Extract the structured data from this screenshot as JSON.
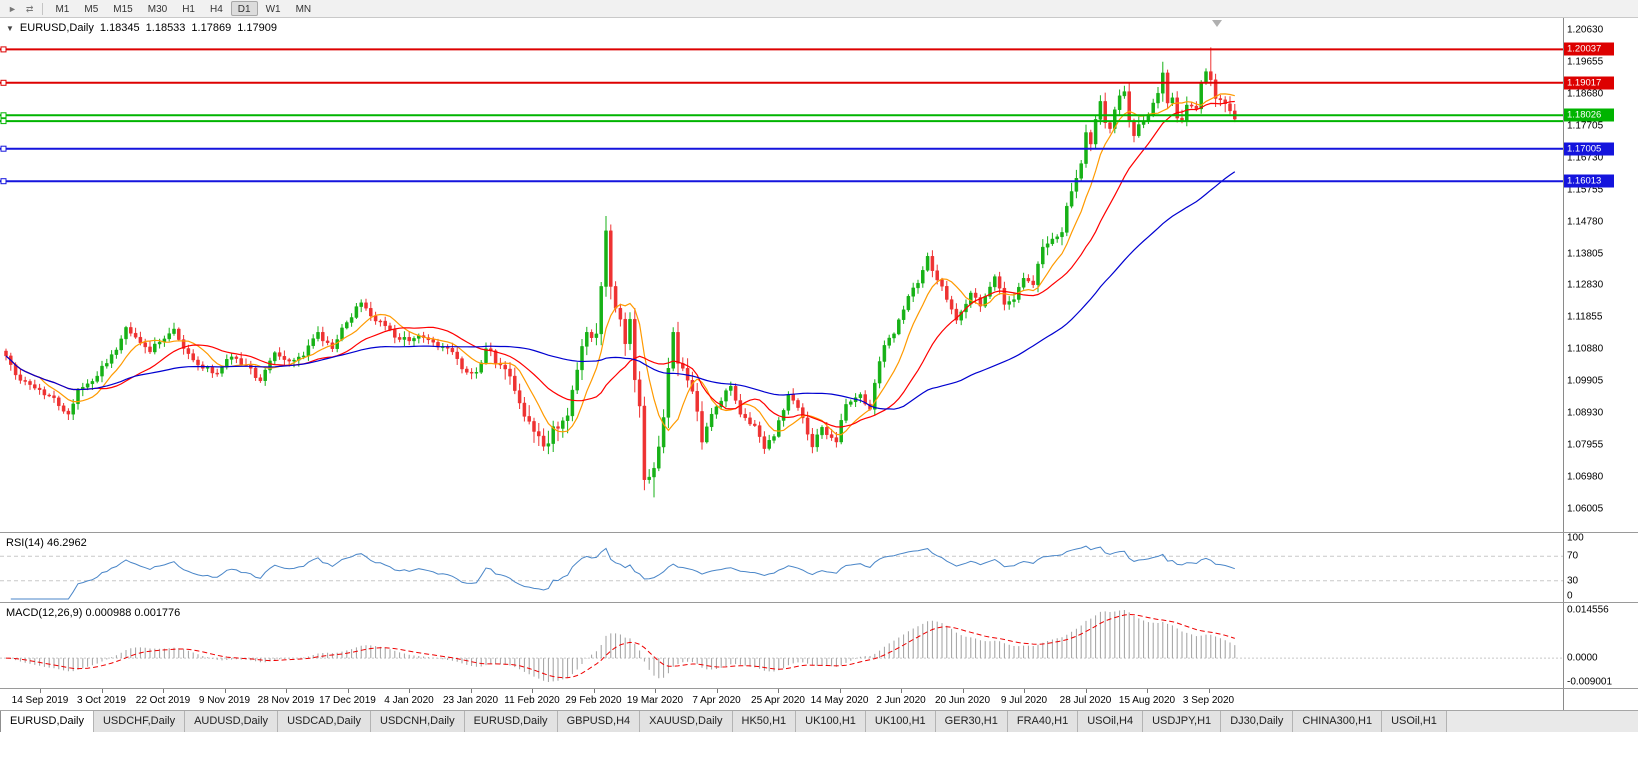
{
  "toolbar": {
    "icons": [
      {
        "name": "auto-scroll-icon",
        "glyph": "►"
      },
      {
        "name": "chart-shift-icon",
        "glyph": "⇄"
      }
    ],
    "timeframes": [
      "M1",
      "M5",
      "M15",
      "M30",
      "H1",
      "H4",
      "D1",
      "W1",
      "MN"
    ],
    "active_timeframe": "D1"
  },
  "window": {
    "bottom_tabs": [
      "EURUSD,Daily",
      "USDCHF,Daily",
      "AUDUSD,Daily",
      "USDCAD,Daily",
      "USDCNH,Daily",
      "EURUSD,Daily",
      "GBPUSD,H4",
      "XAUUSD,Daily",
      "HK50,H1",
      "UK100,H1",
      "UK100,H1",
      "GER30,H1",
      "FRA40,H1",
      "USOil,H4",
      "USDJPY,H1",
      "DJ30,Daily",
      "CHINA300,H1",
      "USOil,H1"
    ],
    "active_tab_index": 0
  },
  "chart_data": {
    "type": "candlestick",
    "symbol_label": "EURUSD,Daily",
    "timeframe": "Daily",
    "ohlc_readout": {
      "open": "1.18345",
      "high": "1.18533",
      "low": "1.17869",
      "close": "1.17909"
    },
    "price_axis": {
      "top_price": 1.2063,
      "bottom_price": 1.06005,
      "ticks": [
        "1.20630",
        "1.19655",
        "1.18680",
        "1.17705",
        "1.16730",
        "1.15755",
        "1.14780",
        "1.13805",
        "1.12830",
        "1.11855",
        "1.10880",
        "1.09905",
        "1.08930",
        "1.07955",
        "1.06980",
        "1.06005"
      ]
    },
    "horizontal_lines": [
      {
        "price": 1.20037,
        "label": "1.20037",
        "color": "#dd0000",
        "width": 2
      },
      {
        "price": 1.19017,
        "label": "1.19017",
        "color": "#dd0000",
        "width": 2
      },
      {
        "price": 1.18026,
        "label": "1.18026",
        "color": "#00b400",
        "width": 2
      },
      {
        "price": 1.1785,
        "label": "",
        "color": "#00b400",
        "width": 2
      },
      {
        "price": 1.17005,
        "label": "1.17005",
        "color": "#1414dd",
        "width": 2
      },
      {
        "price": 1.16013,
        "label": "1.16013",
        "color": "#1414dd",
        "width": 2
      }
    ],
    "num_candles": 257,
    "candle_colors": {
      "up": "#17b117",
      "down": "#ee3232"
    },
    "close_anchors": [
      [
        0,
        1.1068
      ],
      [
        2,
        1.101
      ],
      [
        4,
        1.099
      ],
      [
        7,
        1.0965
      ],
      [
        10,
        1.094
      ],
      [
        13,
        1.089
      ],
      [
        15,
        1.0965
      ],
      [
        18,
        1.099
      ],
      [
        21,
        1.1045
      ],
      [
        24,
        1.112
      ],
      [
        25,
        1.1155
      ],
      [
        27,
        1.1125
      ],
      [
        30,
        1.108
      ],
      [
        32,
        1.111
      ],
      [
        35,
        1.115
      ],
      [
        38,
        1.1075
      ],
      [
        41,
        1.103
      ],
      [
        44,
        1.1015
      ],
      [
        47,
        1.1065
      ],
      [
        50,
        1.104
      ],
      [
        53,
        1.0992
      ],
      [
        56,
        1.1078
      ],
      [
        59,
        1.1052
      ],
      [
        62,
        1.1068
      ],
      [
        65,
        1.114
      ],
      [
        68,
        1.109
      ],
      [
        71,
        1.117
      ],
      [
        74,
        1.123
      ],
      [
        76,
        1.119
      ],
      [
        79,
        1.116
      ],
      [
        82,
        1.1118
      ],
      [
        86,
        1.113
      ],
      [
        90,
        1.1095
      ],
      [
        93,
        1.108
      ],
      [
        95,
        1.1028
      ],
      [
        98,
        1.1018
      ],
      [
        100,
        1.109
      ],
      [
        103,
        1.104
      ],
      [
        106,
        1.0962
      ],
      [
        109,
        1.0868
      ],
      [
        112,
        1.0792
      ],
      [
        114,
        1.0852
      ],
      [
        117,
        1.0885
      ],
      [
        119,
        1.1025
      ],
      [
        121,
        1.114
      ],
      [
        123,
        1.1135
      ],
      [
        124,
        1.128
      ],
      [
        125,
        1.145
      ],
      [
        126,
        1.128
      ],
      [
        128,
        1.118
      ],
      [
        129,
        1.1105
      ],
      [
        130,
        1.118
      ],
      [
        131,
        1.0995
      ],
      [
        132,
        1.0915
      ],
      [
        133,
        1.069
      ],
      [
        134,
        1.0698
      ],
      [
        135,
        1.0725
      ],
      [
        136,
        1.079
      ],
      [
        137,
        1.088
      ],
      [
        138,
        1.103
      ],
      [
        139,
        1.114
      ],
      [
        140,
        1.1045
      ],
      [
        141,
        1.103
      ],
      [
        143,
        1.096
      ],
      [
        145,
        1.0805
      ],
      [
        147,
        1.089
      ],
      [
        149,
        1.093
      ],
      [
        151,
        1.0975
      ],
      [
        153,
        1.089
      ],
      [
        156,
        1.0855
      ],
      [
        158,
        1.0785
      ],
      [
        160,
        1.0822
      ],
      [
        163,
        1.095
      ],
      [
        165,
        1.091
      ],
      [
        168,
        1.079
      ],
      [
        170,
        1.085
      ],
      [
        173,
        1.0805
      ],
      [
        175,
        1.092
      ],
      [
        178,
        1.095
      ],
      [
        180,
        1.0905
      ],
      [
        181,
        1.0985
      ],
      [
        183,
        1.11
      ],
      [
        185,
        1.1135
      ],
      [
        188,
        1.125
      ],
      [
        190,
        1.129
      ],
      [
        192,
        1.1372
      ],
      [
        194,
        1.13
      ],
      [
        196,
        1.124
      ],
      [
        198,
        1.1177
      ],
      [
        201,
        1.126
      ],
      [
        203,
        1.122
      ],
      [
        206,
        1.131
      ],
      [
        208,
        1.1225
      ],
      [
        210,
        1.124
      ],
      [
        212,
        1.1305
      ],
      [
        214,
        1.1285
      ],
      [
        216,
        1.14
      ],
      [
        218,
        1.1425
      ],
      [
        220,
        1.1445
      ],
      [
        221,
        1.1525
      ],
      [
        222,
        1.157
      ],
      [
        224,
        1.1655
      ],
      [
        225,
        1.175
      ],
      [
        226,
        1.1715
      ],
      [
        227,
        1.179
      ],
      [
        228,
        1.1845
      ],
      [
        229,
        1.178
      ],
      [
        230,
        1.1762
      ],
      [
        232,
        1.1862
      ],
      [
        233,
        1.1875
      ],
      [
        234,
        1.1785
      ],
      [
        235,
        1.174
      ],
      [
        237,
        1.1785
      ],
      [
        239,
        1.184
      ],
      [
        240,
        1.187
      ],
      [
        241,
        1.1932
      ],
      [
        242,
        1.184
      ],
      [
        243,
        1.1856
      ],
      [
        244,
        1.1794
      ],
      [
        245,
        1.1786
      ],
      [
        246,
        1.1834
      ],
      [
        248,
        1.1822
      ],
      [
        249,
        1.1902
      ],
      [
        250,
        1.1936
      ],
      [
        251,
        1.1911
      ],
      [
        252,
        1.1854
      ],
      [
        253,
        1.185
      ],
      [
        254,
        1.1838
      ],
      [
        255,
        1.1816
      ],
      [
        256,
        1.1791
      ]
    ],
    "extremes": {
      "112": {
        "low": 1.0778
      },
      "125": {
        "high": 1.1495
      },
      "135": {
        "low": 1.0636
      },
      "241": {
        "high": 1.1966
      },
      "251": {
        "high": 1.201
      }
    },
    "moving_averages": [
      {
        "name": "fast-orange",
        "period": 8,
        "color": "#ff9a00"
      },
      {
        "name": "medium-red",
        "period": 20,
        "color": "#ff0000"
      },
      {
        "name": "slow-blue",
        "period": 55,
        "color": "#0000d0"
      }
    ],
    "date_labels": [
      "14 Sep 2019",
      "3 Oct 2019",
      "22 Oct 2019",
      "9 Nov 2019",
      "28 Nov 2019",
      "17 Dec 2019",
      "4 Jan 2020",
      "23 Jan 2020",
      "11 Feb 2020",
      "29 Feb 2020",
      "19 Mar 2020",
      "7 Apr 2020",
      "25 Apr 2020",
      "14 May 2020",
      "2 Jun 2020",
      "20 Jun 2020",
      "9 Jul 2020",
      "28 Jul 2020",
      "15 Aug 2020",
      "3 Sep 2020"
    ],
    "rsi": {
      "label": "RSI(14) 46.2962",
      "period": 14,
      "value": 46.2962,
      "levels": [
        100,
        70,
        30,
        0
      ],
      "axis_labels": [
        "100",
        "70",
        "30",
        "0"
      ],
      "dashed_levels": [
        70,
        30
      ],
      "color": "#4a86c8"
    },
    "macd": {
      "label": "MACD(12,26,9) 0.000988 0.001776",
      "fast": 12,
      "slow": 26,
      "signal_period": 9,
      "macd_value": 0.000988,
      "signal_value": 0.001776,
      "axis_labels": {
        "top": "0.014556",
        "zero": "0.0000",
        "bottom": "-0.009001"
      },
      "histogram_color": "#a0a0a0",
      "signal_color": "#ee0000"
    }
  }
}
